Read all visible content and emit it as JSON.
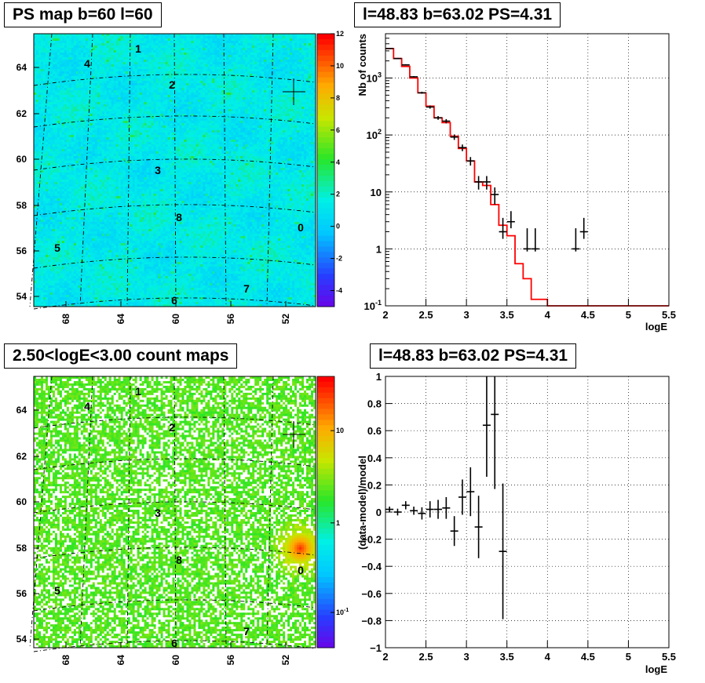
{
  "panels": {
    "ps_map": {
      "title": "PS map b=60 l=60",
      "y_ticks": [
        "54",
        "56",
        "58",
        "60",
        "62",
        "64"
      ],
      "x_ticks": [
        "68",
        "64",
        "60",
        "56",
        "52"
      ],
      "colorbar_ticks": [
        "-4",
        "-2",
        "0",
        "2",
        "4",
        "6",
        "8",
        "10",
        "12"
      ],
      "source_labels": [
        "0",
        "1",
        "2",
        "3",
        "4",
        "5",
        "6",
        "7",
        "8"
      ]
    },
    "spectrum": {
      "title": "l=48.83 b=63.02 PS=4.31"
    },
    "count_map": {
      "title": "2.50<logE<3.00 count maps",
      "y_ticks": [
        "54",
        "56",
        "58",
        "60",
        "62",
        "64"
      ],
      "x_ticks": [
        "68",
        "64",
        "60",
        "56",
        "52"
      ],
      "colorbar_ticks": [
        "10",
        "1",
        "10-1"
      ],
      "source_labels": [
        "0",
        "1",
        "2",
        "3",
        "4",
        "5",
        "6",
        "7",
        "8"
      ]
    },
    "residual": {
      "title": "l=48.83 b=63.02 PS=4.31"
    }
  },
  "chart_data": [
    {
      "type": "heatmap",
      "title": "PS map b=60 l=60",
      "y_ticks": [
        54,
        56,
        58,
        60,
        62,
        64
      ],
      "x_ticks": [
        68,
        64,
        60,
        56,
        52
      ],
      "colorbar_range": [
        -5,
        12
      ],
      "colorbar_ticks": [
        -4,
        -2,
        0,
        2,
        4,
        6,
        8,
        10,
        12
      ],
      "sources": [
        "0",
        "1",
        "2",
        "3",
        "4",
        "5",
        "6",
        "7",
        "8"
      ]
    },
    {
      "type": "line",
      "title": "l=48.83 b=63.02 PS=4.31",
      "xlabel": "logE",
      "ylabel": "Nb of counts",
      "xlim": [
        2,
        5.5
      ],
      "ylim": [
        0.1,
        6000
      ],
      "yscale": "log",
      "x_ticks": [
        2,
        2.5,
        3,
        3.5,
        4,
        4.5,
        5,
        5.5
      ],
      "y_tick_labels": [
        "10^-1",
        "1",
        "10",
        "10^2",
        "10^3"
      ],
      "grid": true,
      "series": [
        {
          "style": "points-with-errorbars",
          "x": [
            2.05,
            2.15,
            2.25,
            2.35,
            2.45,
            2.55,
            2.65,
            2.75,
            2.85,
            2.95,
            3.05,
            3.15,
            3.25,
            3.35,
            3.45,
            3.55,
            3.75,
            3.85,
            4.35,
            4.45
          ],
          "y": [
            3300,
            2200,
            1700,
            1050,
            550,
            310,
            200,
            175,
            92,
            60,
            35,
            15,
            15,
            9,
            2,
            3,
            1,
            1,
            1,
            2
          ],
          "yerr_low": [
            3240,
            2150,
            1660,
            1020,
            530,
            290,
            185,
            160,
            82,
            52,
            29,
            11,
            11,
            6,
            1.5,
            2.3,
            0.9,
            0.9,
            0.9,
            1.5
          ],
          "yerr_high": [
            3370,
            2250,
            1750,
            1080,
            575,
            330,
            215,
            190,
            102,
            68,
            41,
            19,
            19,
            12,
            3.5,
            4.6,
            2.3,
            2.3,
            2.3,
            3.5
          ]
        },
        {
          "style": "step",
          "color": "#ff0000",
          "edges": [
            2.0,
            2.1,
            2.2,
            2.3,
            2.4,
            2.5,
            2.6,
            2.7,
            2.8,
            2.9,
            3.0,
            3.1,
            3.2,
            3.3,
            3.4,
            3.5,
            3.6,
            3.7,
            3.8,
            3.9,
            4.0,
            4.1,
            4.2,
            4.3,
            4.4,
            4.5,
            4.6,
            4.7,
            4.8,
            4.9,
            5.0,
            5.1,
            5.2,
            5.3,
            5.4,
            5.5
          ],
          "values": [
            3300,
            2200,
            1600,
            1000,
            550,
            320,
            200,
            165,
            95,
            58,
            35,
            15,
            13,
            6,
            2.6,
            1.7,
            0.55,
            0.3,
            0.13,
            0.13,
            0.1,
            0.1,
            0.1,
            0.1,
            0.1,
            0.1,
            0.1,
            0.1,
            0.1,
            0.1,
            0.1,
            0.1,
            0.1,
            0.1,
            0.1
          ]
        }
      ]
    },
    {
      "type": "heatmap",
      "title": "2.50<logE<3.00 count maps",
      "y_ticks": [
        54,
        56,
        58,
        60,
        62,
        64
      ],
      "x_ticks": [
        68,
        64,
        60,
        56,
        52
      ],
      "colorbar_scale": "log",
      "colorbar_ticks": [
        "10^-1",
        "1",
        "10"
      ],
      "sources": [
        "0",
        "1",
        "2",
        "3",
        "4",
        "5",
        "6",
        "7",
        "8"
      ]
    },
    {
      "type": "scatter",
      "title": "l=48.83 b=63.02 PS=4.31",
      "xlabel": "logE",
      "ylabel": "(data-model)/model",
      "xlim": [
        2,
        5.5
      ],
      "ylim": [
        -1,
        1
      ],
      "x_ticks": [
        2,
        2.5,
        3,
        3.5,
        4,
        4.5,
        5,
        5.5
      ],
      "y_ticks": [
        -1,
        -0.8,
        -0.6,
        -0.4,
        -0.2,
        0,
        0.2,
        0.4,
        0.6,
        0.8,
        1
      ],
      "grid": true,
      "points": {
        "x": [
          2.05,
          2.15,
          2.25,
          2.35,
          2.45,
          2.55,
          2.65,
          2.75,
          2.85,
          2.95,
          3.05,
          3.15,
          3.25,
          3.35,
          3.45
        ],
        "y": [
          0.02,
          0.0,
          0.05,
          0.01,
          -0.01,
          0.02,
          0.02,
          0.03,
          -0.14,
          0.11,
          0.15,
          -0.11,
          0.64,
          0.72,
          -0.29
        ],
        "yerr": [
          0.02,
          0.025,
          0.03,
          0.03,
          0.045,
          0.06,
          0.07,
          0.08,
          0.11,
          0.13,
          0.18,
          0.23,
          0.38,
          0.55,
          0.5
        ]
      }
    }
  ]
}
